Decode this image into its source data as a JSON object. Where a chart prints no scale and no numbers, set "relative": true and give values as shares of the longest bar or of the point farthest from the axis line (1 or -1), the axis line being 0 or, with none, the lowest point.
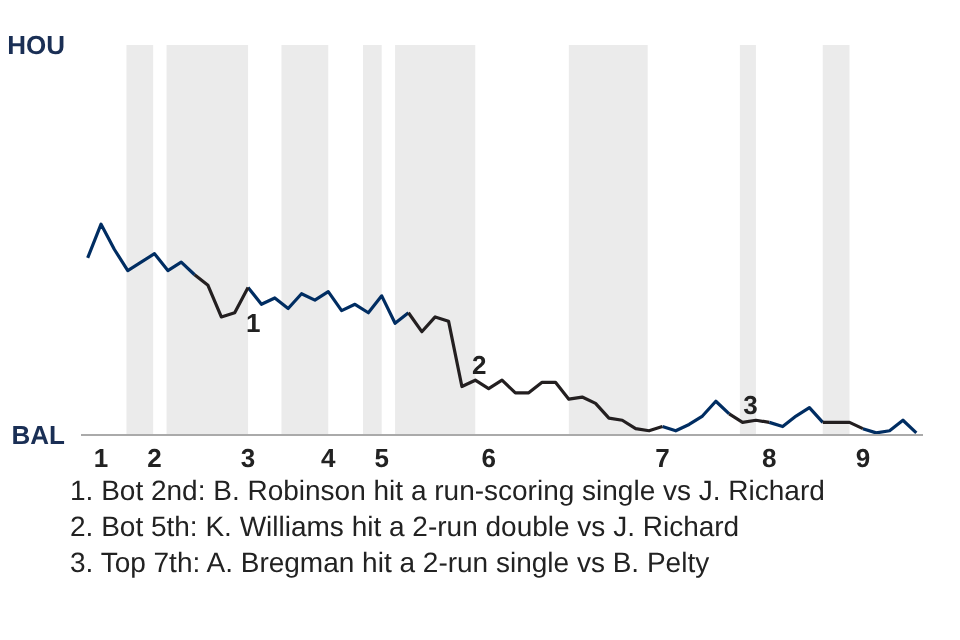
{
  "chart_data": {
    "type": "line",
    "relative": true,
    "categories": [
      null,
      "1",
      null,
      null,
      null,
      "2",
      null,
      null,
      null,
      null,
      null,
      null,
      "3",
      null,
      null,
      null,
      null,
      null,
      "4",
      null,
      null,
      null,
      "5",
      null,
      null,
      null,
      null,
      null,
      null,
      null,
      "6",
      null,
      null,
      null,
      null,
      null,
      null,
      null,
      null,
      null,
      null,
      null,
      null,
      "7",
      null,
      null,
      null,
      null,
      null,
      null,
      null,
      "8",
      null,
      null,
      null,
      null,
      null,
      null,
      "9",
      null,
      null,
      null,
      null
    ],
    "series": [
      {
        "color": "#002d62",
        "values": [
          0.84,
          1,
          0.88,
          0.78,
          0.82,
          0.86,
          0.78,
          0.82,
          0.76,
          null,
          null,
          null,
          0.7,
          0.62,
          0.65,
          0.6,
          0.67,
          0.64,
          0.68,
          0.59,
          0.62,
          0.58,
          0.66,
          0.53,
          0.58,
          null,
          null,
          null,
          null,
          null,
          null,
          null,
          null,
          null,
          null,
          null,
          null,
          null,
          null,
          null,
          null,
          null,
          null,
          0.04,
          0.02,
          0.05,
          0.09,
          0.16,
          0.1,
          null,
          null,
          0.06,
          0.04,
          0.09,
          0.13,
          0.06,
          null,
          null,
          0.03,
          0.01,
          0.02,
          0.07,
          0.01
        ]
      },
      {
        "color": "#231f20",
        "values": [
          null,
          null,
          null,
          null,
          null,
          null,
          null,
          null,
          0.76,
          0.71,
          0.56,
          0.58,
          0.7,
          null,
          null,
          null,
          null,
          null,
          null,
          null,
          null,
          null,
          null,
          null,
          0.58,
          0.49,
          0.56,
          0.54,
          0.23,
          0.26,
          0.22,
          0.26,
          0.2,
          0.2,
          0.25,
          0.25,
          0.17,
          0.18,
          0.15,
          0.08,
          0.07,
          0.03,
          0.02,
          0.04,
          null,
          null,
          null,
          null,
          0.1,
          0.06,
          0.07,
          0.06,
          null,
          null,
          null,
          0.06,
          0.06,
          0.06,
          0.03,
          null,
          null,
          null,
          null
        ]
      }
    ],
    "annotations": [
      "HOU",
      "BAL",
      "1",
      "2",
      "3",
      "1. Bot 2nd: B. Robinson hit a run-scoring single vs J. Richard",
      "2. Bot 5th: K. Williams hit a 2-run double vs J. Richard",
      "3. Top 7th: A. Bregman hit a 2-run single vs B. Pelty"
    ]
  }
}
